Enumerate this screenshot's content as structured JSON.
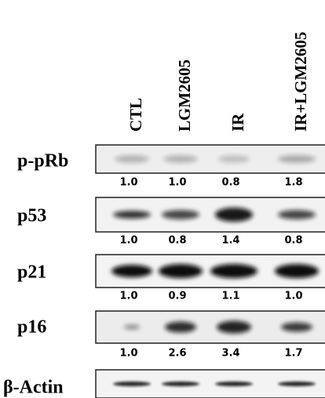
{
  "figure": {
    "columns": [
      "CTL",
      "LGM2605",
      "IR",
      "IR+LGM2605"
    ],
    "rows": [
      {
        "label": "p-pRb",
        "values": [
          "1.0",
          "1.0",
          "0.8",
          "1.8"
        ]
      },
      {
        "label": "p53",
        "values": [
          "1.0",
          "0.8",
          "1.4",
          "0.8"
        ]
      },
      {
        "label": "p21",
        "values": [
          "1.0",
          "0.9",
          "1.1",
          "1.0"
        ]
      },
      {
        "label": "p16",
        "values": [
          "1.0",
          "2.6",
          "3.4",
          "1.7"
        ]
      },
      {
        "label": "β-Actin"
      }
    ]
  }
}
